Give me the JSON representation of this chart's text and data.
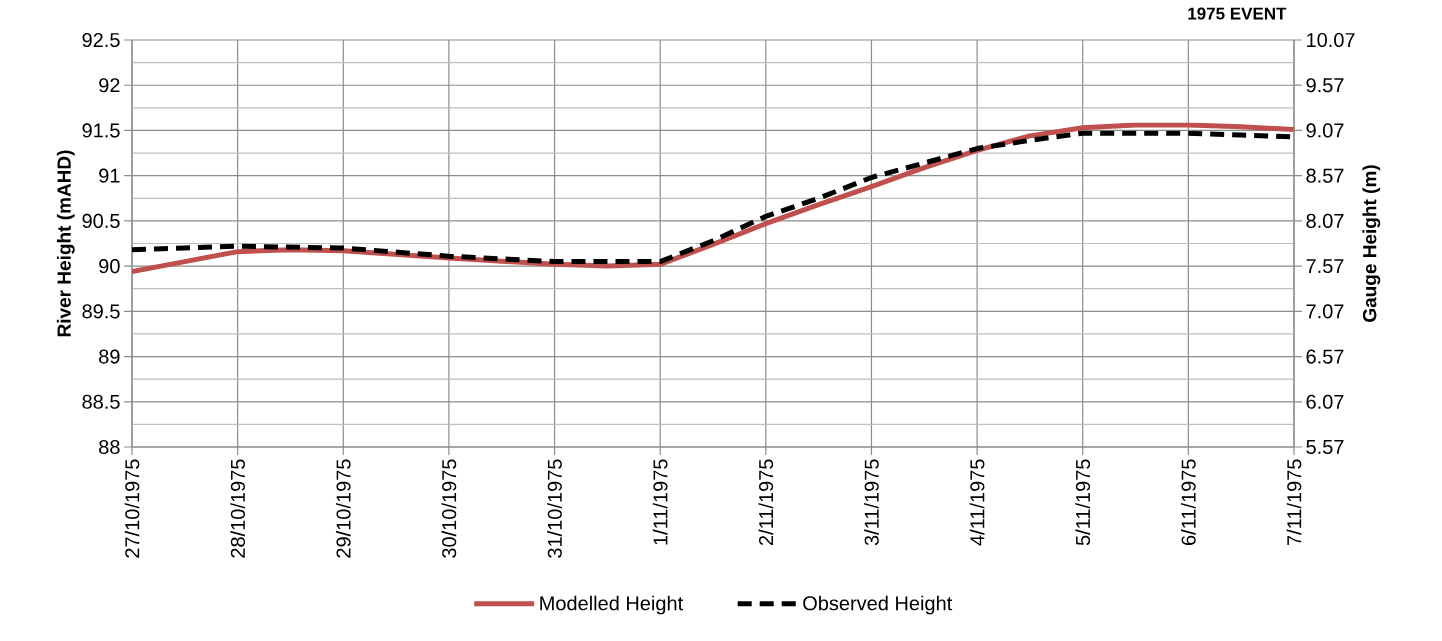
{
  "chart_data": {
    "type": "line",
    "title": "1975 EVENT",
    "ylabel": "River Height (mAHD)",
    "y2label": "Gauge Height (m)",
    "x": [
      "1975-10-27T00:00",
      "1975-10-27T12:00",
      "1975-10-28T00:00",
      "1975-10-28T12:00",
      "1975-10-29T00:00",
      "1975-10-30T00:00",
      "1975-10-31T00:00",
      "1975-10-31T12:00",
      "1975-11-01T00:00",
      "1975-11-01T12:00",
      "1975-11-02T00:00",
      "1975-11-02T12:00",
      "1975-11-03T00:00",
      "1975-11-03T12:00",
      "1975-11-04T00:00",
      "1975-11-04T12:00",
      "1975-11-05T00:00",
      "1975-11-05T12:00",
      "1975-11-06T00:00",
      "1975-11-06T12:00",
      "1975-11-07T00:00"
    ],
    "series": [
      {
        "name": "Modelled Height",
        "color": "#c0504d",
        "line_style": "solid",
        "values": [
          89.94,
          90.05,
          90.16,
          90.18,
          90.17,
          90.09,
          90.02,
          90.0,
          90.02,
          90.24,
          90.47,
          90.68,
          90.88,
          91.09,
          91.28,
          91.44,
          91.53,
          91.56,
          91.56,
          91.54,
          91.51
        ]
      },
      {
        "name": "Observed Height",
        "color": "#000000",
        "line_style": "dashed",
        "values": [
          90.18,
          90.2,
          90.22,
          90.21,
          90.2,
          90.11,
          90.05,
          90.05,
          90.05,
          90.28,
          90.55,
          90.75,
          90.98,
          91.14,
          91.3,
          91.39,
          91.47,
          91.47,
          91.47,
          91.45,
          91.43
        ]
      }
    ],
    "xlim": [
      "1975-10-27",
      "1975-11-07"
    ],
    "xticks": [
      {
        "value": "1975-10-27",
        "label": "27/10/1975"
      },
      {
        "value": "1975-10-28",
        "label": "28/10/1975"
      },
      {
        "value": "1975-10-29",
        "label": "29/10/1975"
      },
      {
        "value": "1975-10-30",
        "label": "30/10/1975"
      },
      {
        "value": "1975-10-31",
        "label": "31/10/1975"
      },
      {
        "value": "1975-11-01",
        "label": "1/11/1975"
      },
      {
        "value": "1975-11-02",
        "label": "2/11/1975"
      },
      {
        "value": "1975-11-03",
        "label": "3/11/1975"
      },
      {
        "value": "1975-11-04",
        "label": "4/11/1975"
      },
      {
        "value": "1975-11-05",
        "label": "5/11/1975"
      },
      {
        "value": "1975-11-06",
        "label": "6/11/1975"
      },
      {
        "value": "1975-11-07",
        "label": "7/11/1975"
      }
    ],
    "ylim": [
      88,
      92.5
    ],
    "yticks": [
      88,
      88.5,
      89,
      89.5,
      90,
      90.5,
      91,
      91.5,
      92,
      92.5
    ],
    "y2lim": [
      5.57,
      10.07
    ],
    "y2ticks": [
      5.57,
      6.07,
      6.57,
      7.07,
      7.57,
      8.07,
      8.57,
      9.07,
      9.57,
      10.07
    ],
    "grid": true,
    "legend": "bottom",
    "marker": "none"
  }
}
